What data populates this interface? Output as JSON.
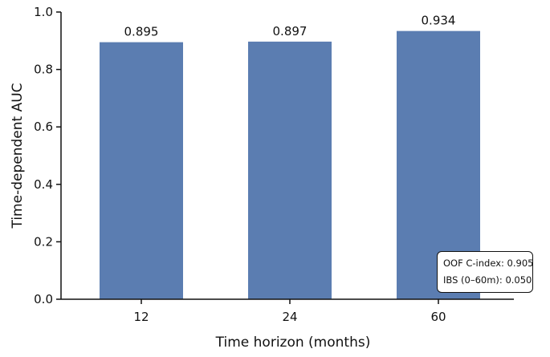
{
  "chart_data": {
    "type": "bar",
    "categories": [
      "12",
      "24",
      "60"
    ],
    "values": [
      0.895,
      0.897,
      0.934
    ],
    "value_labels": [
      "0.895",
      "0.897",
      "0.934"
    ],
    "xlabel": "Time horizon (months)",
    "ylabel": "Time-dependent AUC",
    "ylim": [
      0,
      1.0
    ],
    "yticks": [
      "0.0",
      "0.2",
      "0.4",
      "0.6",
      "0.8",
      "1.0"
    ],
    "grid": false,
    "bar_color": "#5b7db1",
    "annotation": {
      "line1": "OOF C-index: 0.905",
      "line2": "IBS (0–60m): 0.050"
    }
  }
}
